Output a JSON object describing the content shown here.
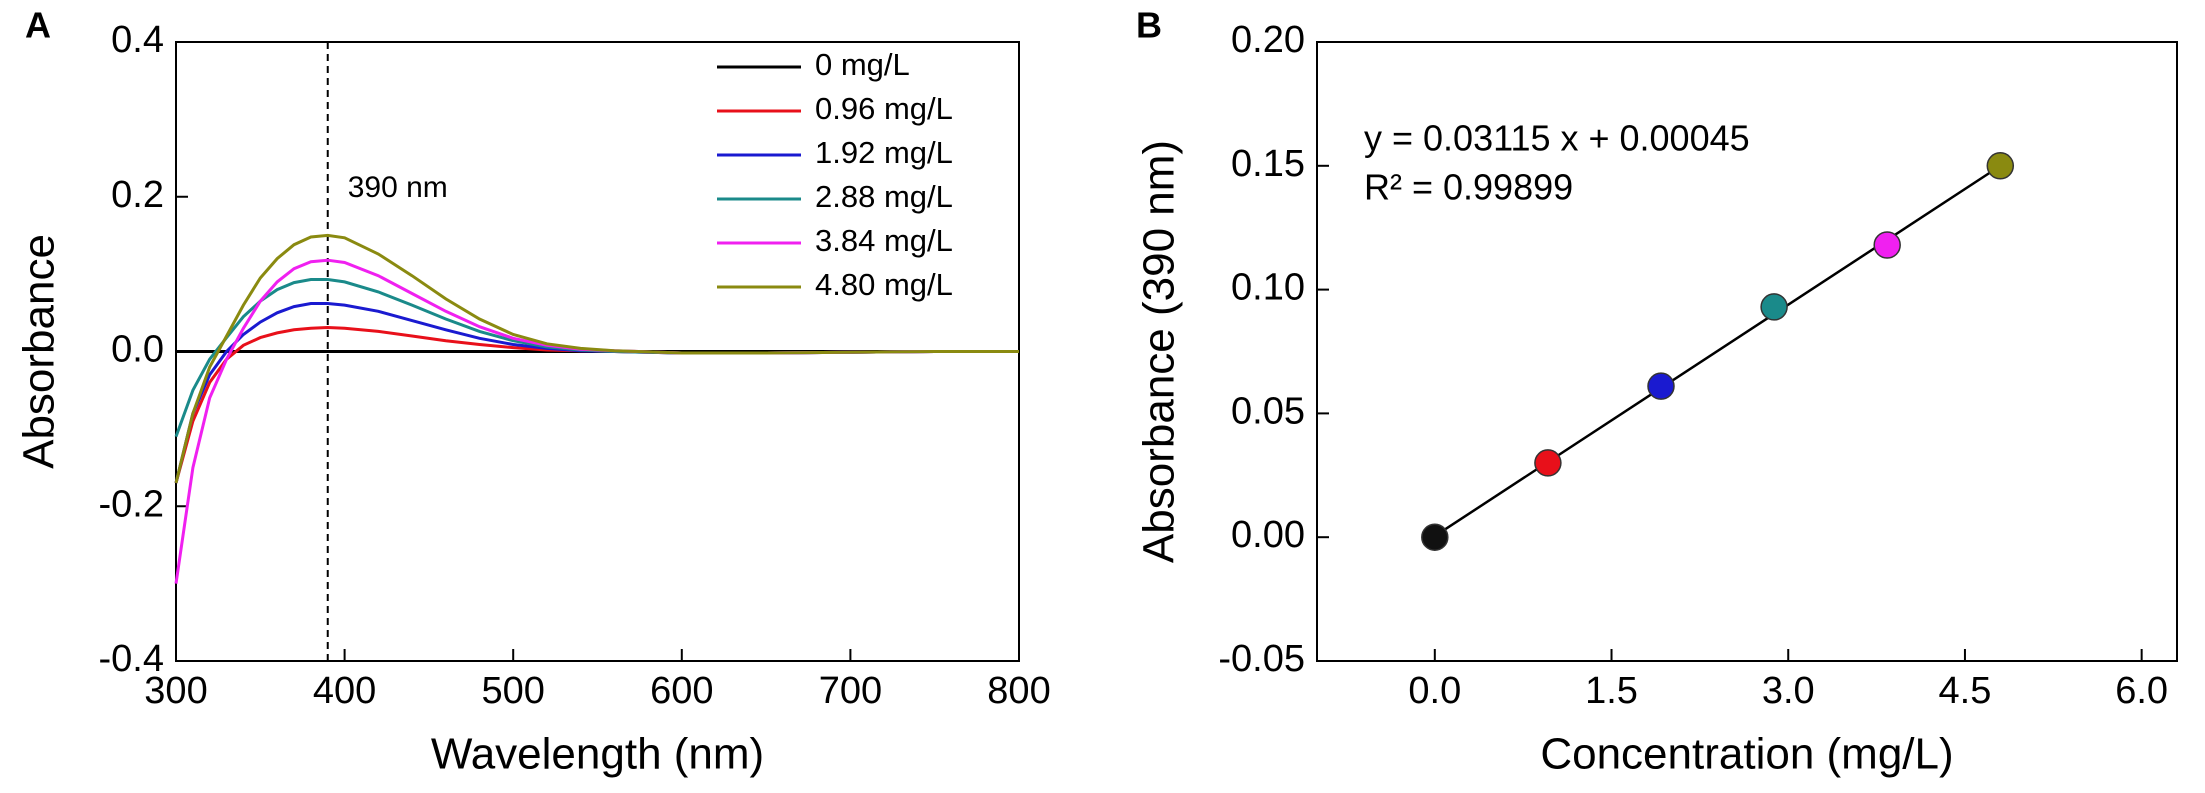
{
  "chart_data": [
    {
      "type": "line",
      "panel": "A",
      "xlabel": "Wavelength (nm)",
      "ylabel": "Absorbance",
      "x": [
        300,
        310,
        320,
        330,
        340,
        350,
        360,
        370,
        380,
        390,
        400,
        420,
        440,
        460,
        480,
        500,
        520,
        540,
        560,
        600,
        650,
        700,
        750,
        800
      ],
      "series": [
        {
          "name": "0 mg/L",
          "color": "#000000",
          "values": [
            0,
            0,
            0,
            0,
            0,
            0,
            0,
            0,
            0,
            0,
            0,
            0,
            0,
            0,
            0,
            0,
            0,
            0,
            0,
            0,
            0,
            0,
            0,
            0
          ]
        },
        {
          "name": "0.96 mg/L",
          "color": "#e8101a",
          "values": [
            -0.17,
            -0.09,
            -0.04,
            -0.01,
            0.008,
            0.018,
            0.024,
            0.028,
            0.03,
            0.031,
            0.03,
            0.026,
            0.02,
            0.014,
            0.009,
            0.005,
            0.002,
            0.001,
            0,
            -0.002,
            -0.002,
            -0.001,
            0,
            0
          ]
        },
        {
          "name": "1.92 mg/L",
          "color": "#1a1ad0",
          "values": [
            -0.17,
            -0.08,
            -0.03,
            0,
            0.022,
            0.038,
            0.05,
            0.058,
            0.062,
            0.062,
            0.06,
            0.052,
            0.04,
            0.028,
            0.017,
            0.009,
            0.004,
            0.001,
            0,
            -0.002,
            -0.002,
            -0.001,
            0,
            0
          ]
        },
        {
          "name": "2.88 mg/L",
          "color": "#1a8a8a",
          "values": [
            -0.11,
            -0.05,
            -0.01,
            0.018,
            0.045,
            0.065,
            0.08,
            0.089,
            0.093,
            0.093,
            0.09,
            0.077,
            0.06,
            0.042,
            0.026,
            0.014,
            0.006,
            0.002,
            0,
            -0.002,
            -0.002,
            -0.001,
            0,
            0
          ]
        },
        {
          "name": "3.84 mg/L",
          "color": "#f020f0",
          "values": [
            -0.3,
            -0.15,
            -0.06,
            -0.01,
            0.03,
            0.065,
            0.09,
            0.107,
            0.116,
            0.118,
            0.115,
            0.098,
            0.075,
            0.052,
            0.032,
            0.017,
            0.008,
            0.003,
            0.001,
            -0.002,
            -0.002,
            -0.001,
            0,
            0
          ]
        },
        {
          "name": "4.80 mg/L",
          "color": "#8a8a10",
          "values": [
            -0.17,
            -0.08,
            -0.02,
            0.02,
            0.06,
            0.095,
            0.12,
            0.138,
            0.148,
            0.15,
            0.147,
            0.126,
            0.098,
            0.068,
            0.042,
            0.022,
            0.01,
            0.004,
            0.001,
            -0.002,
            -0.002,
            -0.001,
            0,
            0
          ]
        }
      ],
      "xlim": [
        300,
        800
      ],
      "xticks": [
        300,
        400,
        500,
        600,
        700,
        800
      ],
      "ylim": [
        -0.4,
        0.4
      ],
      "yticks": [
        -0.4,
        -0.2,
        {
          "value": 0,
          "label": "0.0"
        },
        0.2,
        0.4
      ],
      "legend": "upper right",
      "annotation": {
        "text": "390 nm",
        "x": 390,
        "y": 0.21
      }
    },
    {
      "type": "scatter",
      "panel": "B",
      "xlabel": "Concentration (mg/L)",
      "ylabel": "Absorbance (390 nm)",
      "x": [
        0,
        0.96,
        1.92,
        2.88,
        3.84,
        4.8
      ],
      "values": [
        0,
        0.03,
        0.061,
        0.093,
        0.118,
        0.15
      ],
      "colors": [
        "#111111",
        "#e8101a",
        "#1a1ad0",
        "#1a8a8a",
        "#f020f0",
        "#8a8a10"
      ],
      "fit": {
        "slope": 0.03115,
        "intercept": 0.00045,
        "color": "#000000"
      },
      "equation": "y = 0.03115 x + 0.00045",
      "r_squared": "R² = 0.99899",
      "xlim": [
        -1.0,
        6.3
      ],
      "xticks": [
        {
          "value": 0,
          "label": "0.0"
        },
        1.5,
        {
          "value": 3,
          "label": "3.0"
        },
        4.5,
        {
          "value": 6,
          "label": "6.0"
        }
      ],
      "ylim": [
        -0.05,
        0.2
      ],
      "yticks": [
        {
          "value": -0.05,
          "label": "-0.05"
        },
        {
          "value": 0,
          "label": "0.00"
        },
        0.05,
        {
          "value": 0.1,
          "label": "0.10"
        },
        0.15,
        {
          "value": 0.2,
          "label": "0.20"
        }
      ]
    }
  ]
}
